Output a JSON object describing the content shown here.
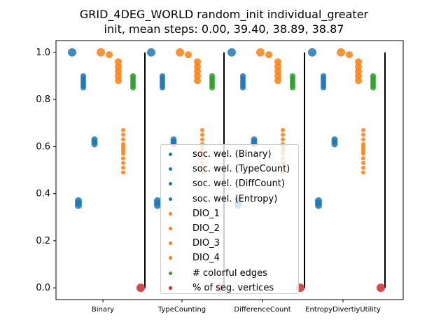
{
  "title_line1": "GRID_4DEG_WORLD random_init individual_greater",
  "title_line2": "init, mean steps: 0.00, 39.40, 38.89, 38.87",
  "colors": {
    "blue": "#1f77b4",
    "orange": "#ff7f0e",
    "green": "#2ca02c",
    "red": "#d62728",
    "separator": "#000000"
  },
  "chart_data": {
    "type": "scatter",
    "categories": [
      "Binary",
      "TypeCounting",
      "DifferenceCount",
      "EntropyDivertiyUtility"
    ],
    "yticks": [
      "0.0",
      "0.2",
      "0.4",
      "0.6",
      "0.8",
      "1.0"
    ],
    "ylim": [
      -0.05,
      1.05
    ],
    "grid": false,
    "legend_placement": "center",
    "series": [
      {
        "name": "soc. wel. (Binary)",
        "color": "#1f77b4",
        "values": [
          [
            1.0
          ],
          [
            1.0
          ],
          [
            1.0
          ],
          [
            1.0
          ]
        ]
      },
      {
        "name": "soc. wel. (TypeCount)",
        "color": "#1f77b4",
        "values": [
          [
            0.85,
            0.86,
            0.87,
            0.88,
            0.89,
            0.9
          ],
          [
            0.85,
            0.86,
            0.87,
            0.88,
            0.89,
            0.9
          ],
          [
            0.85,
            0.86,
            0.87,
            0.88,
            0.89,
            0.9
          ],
          [
            0.85,
            0.86,
            0.87,
            0.88,
            0.89,
            0.9
          ]
        ]
      },
      {
        "name": "soc. wel. (DiffCount)",
        "color": "#1f77b4",
        "values": [
          [
            0.61,
            0.62,
            0.63
          ],
          [
            0.61,
            0.62,
            0.63
          ],
          [
            0.61,
            0.62,
            0.63
          ],
          [
            0.61,
            0.62,
            0.63
          ]
        ]
      },
      {
        "name": "soc. wel. (Entropy)",
        "color": "#1f77b4",
        "values": [
          [
            0.35,
            0.36,
            0.37
          ],
          [
            0.35,
            0.36,
            0.37
          ],
          [
            0.35,
            0.36,
            0.37
          ],
          [
            0.35,
            0.36,
            0.37
          ]
        ]
      },
      {
        "name": "DIO_1",
        "color": "#ff7f0e",
        "values": [
          [
            1.0
          ],
          [
            1.0
          ],
          [
            1.0
          ],
          [
            1.0
          ]
        ]
      },
      {
        "name": "DIO_2",
        "color": "#ff7f0e",
        "values": [
          [
            0.99
          ],
          [
            0.99
          ],
          [
            0.99
          ],
          [
            0.99
          ]
        ]
      },
      {
        "name": "DIO_3",
        "color": "#ff7f0e",
        "values": [
          [
            0.88,
            0.9,
            0.92,
            0.94,
            0.96
          ],
          [
            0.88,
            0.9,
            0.92,
            0.94,
            0.96
          ],
          [
            0.88,
            0.9,
            0.92,
            0.94,
            0.96
          ],
          [
            0.88,
            0.9,
            0.92,
            0.94,
            0.96
          ]
        ]
      },
      {
        "name": "DIO_4",
        "color": "#ff7f0e",
        "values": [
          [
            0.49,
            0.51,
            0.53,
            0.55,
            0.57,
            0.58,
            0.59,
            0.6,
            0.61,
            0.63,
            0.65,
            0.67
          ],
          [
            0.49,
            0.51,
            0.53,
            0.55,
            0.57,
            0.58,
            0.59,
            0.6,
            0.61,
            0.63,
            0.65,
            0.67
          ],
          [
            0.49,
            0.51,
            0.53,
            0.55,
            0.57,
            0.58,
            0.59,
            0.6,
            0.61,
            0.63,
            0.65,
            0.67
          ],
          [
            0.49,
            0.51,
            0.53,
            0.55,
            0.57,
            0.58,
            0.59,
            0.6,
            0.61,
            0.63,
            0.65,
            0.67
          ]
        ]
      },
      {
        "name": "# colorful edges",
        "color": "#2ca02c",
        "values": [
          [
            0.85,
            0.86,
            0.87,
            0.88,
            0.89,
            0.9
          ],
          [
            0.85,
            0.86,
            0.87,
            0.88,
            0.89,
            0.9
          ],
          [
            0.85,
            0.86,
            0.87,
            0.88,
            0.89,
            0.9
          ],
          [
            0.85,
            0.86,
            0.87,
            0.88,
            0.89,
            0.9
          ]
        ]
      },
      {
        "name": "% of seg. vertices",
        "color": "#d62728",
        "values": [
          [
            0.0
          ],
          [
            0.0
          ],
          [
            0.0
          ],
          [
            0.0
          ]
        ]
      }
    ],
    "separators": {
      "ymin": 0.0,
      "ymax": 1.0
    }
  }
}
